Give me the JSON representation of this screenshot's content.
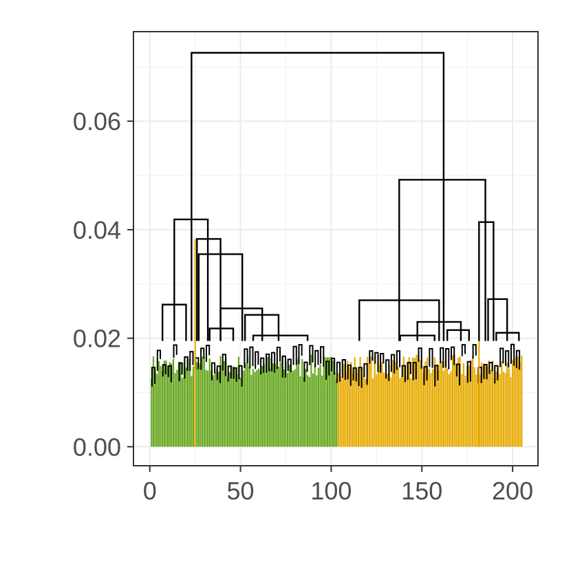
{
  "chart_data": {
    "type": "dendrogram",
    "x_ticks": [
      0,
      50,
      100,
      150,
      200
    ],
    "y_ticks": [
      0.0,
      0.02,
      0.04,
      0.06
    ],
    "x_tick_labels": [
      "0",
      "50",
      "100",
      "150",
      "200"
    ],
    "y_tick_labels": [
      "0.00",
      "0.02",
      "0.04",
      "0.06"
    ],
    "xlim": [
      -9,
      214
    ],
    "ylim": [
      -0.0035,
      0.0765
    ],
    "leaf_count": 205,
    "grid": true,
    "clusters": [
      {
        "leaf_range": [
          1,
          103
        ],
        "color": "#66a61e"
      },
      {
        "leaf_range": [
          104,
          205
        ],
        "color": "#e6ab02"
      }
    ],
    "highlighted_branch_color": "#e6ab02",
    "merges": [
      {
        "left": 23.0,
        "right": 162.0,
        "height": 0.0726
      },
      {
        "left": 13.5,
        "right": 32.0,
        "height": 0.0419
      },
      {
        "left": 137.5,
        "right": 185.0,
        "height": 0.0492
      },
      {
        "left": 26.0,
        "right": 39.0,
        "height": 0.0383
      },
      {
        "left": 27.0,
        "right": 51.0,
        "height": 0.0355
      },
      {
        "left": 115.5,
        "right": 159.5,
        "height": 0.027
      },
      {
        "left": 181.5,
        "right": 189.5,
        "height": 0.0414
      },
      {
        "left": 186.5,
        "right": 197.0,
        "height": 0.0272
      },
      {
        "left": 7.0,
        "right": 20.0,
        "height": 0.0262
      },
      {
        "left": 39.0,
        "right": 62.0,
        "height": 0.0255
      },
      {
        "left": 52.5,
        "right": 71.0,
        "height": 0.0243
      },
      {
        "left": 147.5,
        "right": 171.5,
        "height": 0.023
      },
      {
        "left": 138.0,
        "right": 157.0,
        "height": 0.0205
      },
      {
        "left": 164.0,
        "right": 176.0,
        "height": 0.0215
      },
      {
        "left": 191.0,
        "right": 203.5,
        "height": 0.021
      },
      {
        "left": 33.0,
        "right": 46.0,
        "height": 0.0218
      },
      {
        "left": 57.0,
        "right": 87.0,
        "height": 0.0205
      }
    ]
  }
}
